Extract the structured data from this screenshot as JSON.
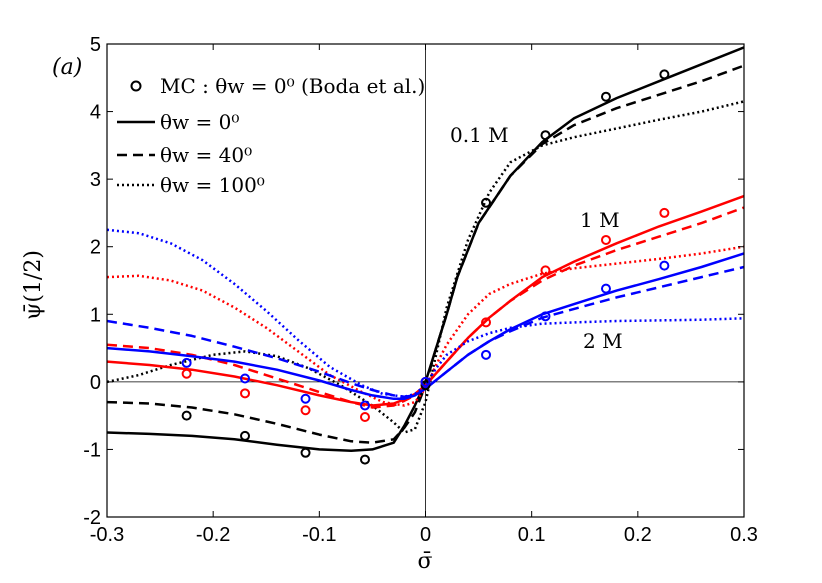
{
  "chart_data": {
    "type": "line",
    "panel_label": "(a)",
    "xlabel": "σ̄",
    "ylabel": "ψ̄(1/2)",
    "xlim": [
      -0.3,
      0.3
    ],
    "ylim": [
      -2,
      5
    ],
    "xticks": [
      -0.3,
      -0.2,
      -0.1,
      0,
      0.1,
      0.2,
      0.3
    ],
    "xtick_labels": [
      "-0.3",
      "-0.2",
      "-0.1",
      "0",
      "0.1",
      "0.2",
      "0.3"
    ],
    "yticks": [
      -2,
      -1,
      0,
      1,
      2,
      3,
      4,
      5
    ],
    "ytick_labels": [
      "-2",
      "-1",
      "0",
      "1",
      "2",
      "3",
      "4",
      "5"
    ],
    "legend": {
      "placement": "top-left",
      "entries": [
        {
          "style": "marker",
          "text": "MC : θw = 0⁰ (Boda et al.)"
        },
        {
          "style": "solid",
          "text": "θw = 0⁰"
        },
        {
          "style": "dashed",
          "text": "θw = 40⁰"
        },
        {
          "style": "dotted",
          "text": "θw = 100⁰"
        }
      ]
    },
    "annotations": [
      {
        "text": "0.1 M",
        "x": 0.08,
        "y": 3.7
      },
      {
        "text": "1 M",
        "x": 0.19,
        "y": 2.4
      },
      {
        "text": "2 M",
        "x": 0.18,
        "y": 0.7
      }
    ],
    "colors": {
      "0.1 M": "#000000",
      "1 M": "#ff0000",
      "2 M": "#0000ff"
    },
    "series": [
      {
        "name": "0.1 M θw=0",
        "color": "#000000",
        "style": "solid",
        "x": [
          -0.3,
          -0.26,
          -0.22,
          -0.18,
          -0.14,
          -0.1,
          -0.07,
          -0.05,
          -0.03,
          -0.02,
          -0.01,
          0,
          0.01,
          0.02,
          0.03,
          0.05,
          0.08,
          0.11,
          0.14,
          0.18,
          0.22,
          0.26,
          0.3
        ],
        "y": [
          -0.75,
          -0.77,
          -0.8,
          -0.85,
          -0.93,
          -1.0,
          -1.02,
          -1.0,
          -0.9,
          -0.65,
          -0.35,
          0.0,
          0.5,
          1.0,
          1.55,
          2.35,
          3.05,
          3.55,
          3.9,
          4.2,
          4.45,
          4.7,
          4.95
        ]
      },
      {
        "name": "0.1 M θw=40",
        "color": "#000000",
        "style": "dashed",
        "x": [
          -0.3,
          -0.26,
          -0.22,
          -0.18,
          -0.14,
          -0.1,
          -0.07,
          -0.05,
          -0.03,
          -0.02,
          -0.01,
          0,
          0.01,
          0.02,
          0.03,
          0.05,
          0.08,
          0.11,
          0.14,
          0.18,
          0.22,
          0.26,
          0.3
        ],
        "y": [
          -0.3,
          -0.32,
          -0.38,
          -0.48,
          -0.62,
          -0.78,
          -0.88,
          -0.9,
          -0.85,
          -0.68,
          -0.45,
          -0.05,
          0.5,
          1.0,
          1.55,
          2.35,
          3.05,
          3.52,
          3.8,
          4.05,
          4.25,
          4.45,
          4.68
        ]
      },
      {
        "name": "0.1 M θw=100",
        "color": "#000000",
        "style": "dotted",
        "x": [
          -0.3,
          -0.27,
          -0.24,
          -0.2,
          -0.17,
          -0.14,
          -0.11,
          -0.08,
          -0.05,
          -0.03,
          -0.02,
          -0.01,
          0,
          0.01,
          0.02,
          0.04,
          0.06,
          0.08,
          0.11,
          0.14,
          0.18,
          0.22,
          0.26,
          0.3
        ],
        "y": [
          0.0,
          0.1,
          0.25,
          0.4,
          0.45,
          0.38,
          0.2,
          -0.05,
          -0.35,
          -0.6,
          -0.75,
          -0.7,
          -0.3,
          0.4,
          1.1,
          2.1,
          2.8,
          3.25,
          3.5,
          3.62,
          3.75,
          3.88,
          4.0,
          4.15
        ]
      },
      {
        "name": "1 M θw=0",
        "color": "#ff0000",
        "style": "solid",
        "x": [
          -0.3,
          -0.26,
          -0.22,
          -0.18,
          -0.14,
          -0.1,
          -0.07,
          -0.05,
          -0.03,
          -0.02,
          -0.01,
          0,
          0.02,
          0.04,
          0.06,
          0.08,
          0.11,
          0.14,
          0.18,
          0.22,
          0.26,
          0.3
        ],
        "y": [
          0.3,
          0.25,
          0.18,
          0.08,
          -0.05,
          -0.2,
          -0.3,
          -0.35,
          -0.32,
          -0.26,
          -0.18,
          -0.05,
          0.3,
          0.65,
          0.95,
          1.2,
          1.55,
          1.78,
          2.05,
          2.3,
          2.52,
          2.75
        ]
      },
      {
        "name": "1 M θw=40",
        "color": "#ff0000",
        "style": "dashed",
        "x": [
          -0.3,
          -0.26,
          -0.22,
          -0.18,
          -0.14,
          -0.1,
          -0.07,
          -0.05,
          -0.03,
          -0.02,
          -0.01,
          0,
          0.02,
          0.04,
          0.06,
          0.08,
          0.11,
          0.14,
          0.18,
          0.22,
          0.26,
          0.3
        ],
        "y": [
          0.55,
          0.5,
          0.4,
          0.25,
          0.05,
          -0.15,
          -0.3,
          -0.38,
          -0.35,
          -0.28,
          -0.2,
          -0.05,
          0.3,
          0.65,
          0.95,
          1.2,
          1.5,
          1.72,
          1.95,
          2.15,
          2.35,
          2.58
        ]
      },
      {
        "name": "1 M θw=100",
        "color": "#ff0000",
        "style": "dotted",
        "x": [
          -0.3,
          -0.27,
          -0.24,
          -0.21,
          -0.18,
          -0.15,
          -0.12,
          -0.09,
          -0.06,
          -0.04,
          -0.02,
          -0.01,
          0,
          0.01,
          0.02,
          0.04,
          0.06,
          0.08,
          0.11,
          0.14,
          0.18,
          0.22,
          0.26,
          0.3
        ],
        "y": [
          1.55,
          1.57,
          1.5,
          1.35,
          1.1,
          0.8,
          0.45,
          0.1,
          -0.15,
          -0.3,
          -0.35,
          -0.3,
          -0.1,
          0.25,
          0.55,
          1.0,
          1.3,
          1.45,
          1.6,
          1.68,
          1.75,
          1.82,
          1.9,
          2.0
        ]
      },
      {
        "name": "2 M θw=0",
        "color": "#0000ff",
        "style": "solid",
        "x": [
          -0.3,
          -0.26,
          -0.22,
          -0.18,
          -0.14,
          -0.1,
          -0.07,
          -0.05,
          -0.03,
          -0.02,
          -0.01,
          0,
          0.02,
          0.04,
          0.06,
          0.08,
          0.11,
          0.14,
          0.18,
          0.22,
          0.26,
          0.3
        ],
        "y": [
          0.5,
          0.45,
          0.38,
          0.3,
          0.18,
          0.02,
          -0.12,
          -0.2,
          -0.25,
          -0.25,
          -0.2,
          -0.1,
          0.15,
          0.4,
          0.6,
          0.78,
          1.0,
          1.15,
          1.35,
          1.52,
          1.7,
          1.9
        ]
      },
      {
        "name": "2 M θw=40",
        "color": "#0000ff",
        "style": "dashed",
        "x": [
          -0.3,
          -0.26,
          -0.22,
          -0.18,
          -0.14,
          -0.1,
          -0.07,
          -0.05,
          -0.03,
          -0.02,
          -0.01,
          0,
          0.02,
          0.04,
          0.06,
          0.08,
          0.11,
          0.14,
          0.18,
          0.22,
          0.26,
          0.3
        ],
        "y": [
          0.9,
          0.8,
          0.68,
          0.52,
          0.35,
          0.15,
          -0.02,
          -0.12,
          -0.2,
          -0.22,
          -0.2,
          -0.1,
          0.15,
          0.4,
          0.6,
          0.75,
          0.95,
          1.08,
          1.25,
          1.4,
          1.55,
          1.7
        ]
      },
      {
        "name": "2 M θw=100",
        "color": "#0000ff",
        "style": "dotted",
        "x": [
          -0.3,
          -0.27,
          -0.24,
          -0.21,
          -0.18,
          -0.15,
          -0.12,
          -0.09,
          -0.06,
          -0.04,
          -0.02,
          -0.01,
          0,
          0.01,
          0.02,
          0.04,
          0.06,
          0.08,
          0.11,
          0.14,
          0.18,
          0.22,
          0.26,
          0.3
        ],
        "y": [
          2.25,
          2.2,
          2.05,
          1.8,
          1.45,
          1.05,
          0.62,
          0.22,
          -0.05,
          -0.18,
          -0.22,
          -0.18,
          -0.05,
          0.2,
          0.4,
          0.6,
          0.72,
          0.8,
          0.86,
          0.88,
          0.9,
          0.91,
          0.92,
          0.94
        ]
      },
      {
        "name": "MC 0.1 M",
        "color": "#000000",
        "style": "marker",
        "x": [
          -0.225,
          -0.17,
          -0.113,
          -0.057,
          0,
          0.057,
          0.113,
          0.17,
          0.225
        ],
        "y": [
          -0.5,
          -0.8,
          -1.05,
          -1.15,
          -0.05,
          2.65,
          3.65,
          4.22,
          4.55
        ]
      },
      {
        "name": "MC 1 M",
        "color": "#ff0000",
        "style": "marker",
        "x": [
          -0.225,
          -0.17,
          -0.113,
          -0.057,
          0,
          0.057,
          0.113,
          0.17,
          0.225
        ],
        "y": [
          0.12,
          -0.17,
          -0.42,
          -0.52,
          0.0,
          0.88,
          1.65,
          2.1,
          2.5
        ]
      },
      {
        "name": "MC 2 M",
        "color": "#0000ff",
        "style": "marker",
        "x": [
          -0.225,
          -0.17,
          -0.113,
          -0.057,
          0,
          0.057,
          0.113,
          0.17,
          0.225
        ],
        "y": [
          0.28,
          0.05,
          -0.25,
          -0.35,
          0.0,
          0.4,
          0.97,
          1.38,
          1.72
        ]
      }
    ]
  }
}
